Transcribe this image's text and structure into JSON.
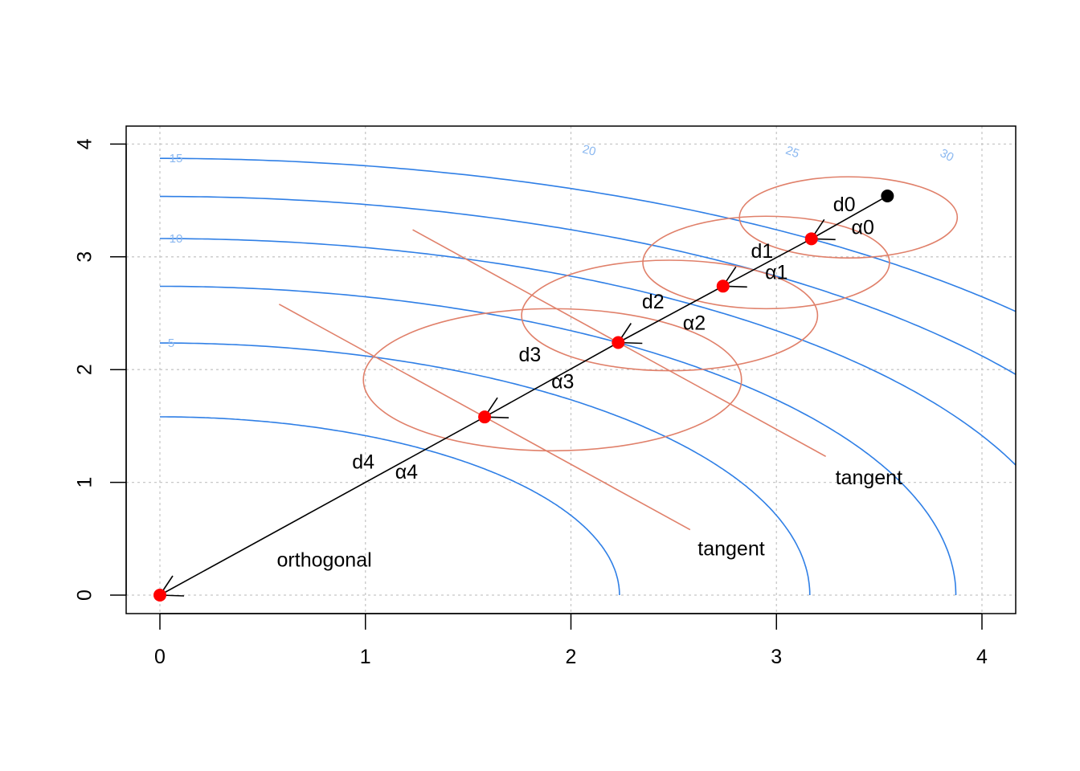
{
  "chart_data": {
    "type": "diagram",
    "x_ticks": [
      "0",
      "1",
      "2",
      "3",
      "4"
    ],
    "y_ticks": [
      "0",
      "1",
      "2",
      "3",
      "4"
    ],
    "xlim": [
      -0.16,
      4.16
    ],
    "ylim": [
      -0.16,
      4.16
    ],
    "grid": true,
    "contours": [
      {
        "label": "5",
        "level": 5
      },
      {
        "label": "10",
        "level": 10
      },
      {
        "label": "15",
        "level": 15
      },
      {
        "label": "20",
        "level": 20
      },
      {
        "label": "25",
        "level": 25
      },
      {
        "label": "30",
        "level": 30
      }
    ],
    "start_point": {
      "x": 3.54,
      "y": 3.54
    },
    "path_points": [
      {
        "x": 3.17,
        "y": 3.16
      },
      {
        "x": 2.74,
        "y": 2.74
      },
      {
        "x": 2.23,
        "y": 2.24
      },
      {
        "x": 1.58,
        "y": 1.58
      },
      {
        "x": 0.0,
        "y": 0.0
      }
    ],
    "circles": [
      {
        "cx": 3.35,
        "cy": 3.35,
        "rx": 0.53,
        "ry": 0.36
      },
      {
        "cx": 2.95,
        "cy": 2.95,
        "rx": 0.6,
        "ry": 0.41
      },
      {
        "cx": 2.48,
        "cy": 2.48,
        "rx": 0.72,
        "ry": 0.49
      },
      {
        "cx": 1.91,
        "cy": 1.91,
        "rx": 0.92,
        "ry": 0.63
      }
    ],
    "tangents": [
      {
        "x1": 1.23,
        "y1": 3.24,
        "x2": 3.24,
        "y2": 1.23
      },
      {
        "x1": 0.58,
        "y1": 2.58,
        "x2": 2.58,
        "y2": 0.58
      }
    ],
    "segment_labels": [
      {
        "d": "d0",
        "alpha": "α0",
        "dx": 3.33,
        "dy": 3.45,
        "ax": 3.42,
        "ay": 3.25
      },
      {
        "d": "d1",
        "alpha": "α1",
        "dx": 2.93,
        "dy": 3.04,
        "ax": 3.0,
        "ay": 2.85
      },
      {
        "d": "d2",
        "alpha": "α2",
        "dx": 2.4,
        "dy": 2.59,
        "ax": 2.6,
        "ay": 2.4
      },
      {
        "d": "d3",
        "alpha": "α3",
        "dx": 1.8,
        "dy": 2.12,
        "ax": 1.96,
        "ay": 1.88
      },
      {
        "d": "d4",
        "alpha": "α4",
        "dx": 0.99,
        "dy": 1.17,
        "ax": 1.2,
        "ay": 1.08
      }
    ],
    "annotations": [
      {
        "text": "orthogonal",
        "x": 0.8,
        "y": 0.3
      },
      {
        "text": "tangent",
        "x": 2.78,
        "y": 0.4
      },
      {
        "text": "tangent",
        "x": 3.45,
        "y": 1.03
      }
    ]
  },
  "colors": {
    "contour": "#2f7fe6",
    "contour_label": "#8bb8f0",
    "circle": "#e0806a",
    "point": "#ff0000",
    "start": "#000000",
    "grid": "#c8c8c8"
  }
}
